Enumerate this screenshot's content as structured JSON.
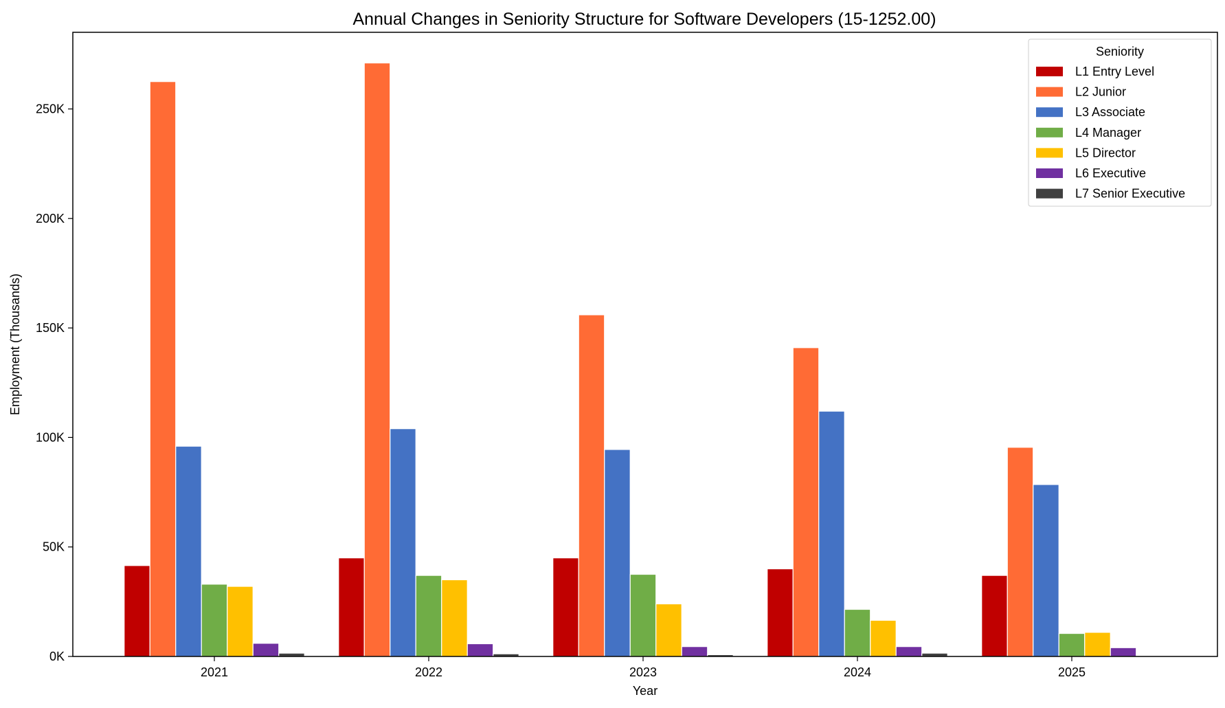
{
  "chart_data": {
    "type": "bar",
    "title": "Annual Changes in Seniority Structure for Software Developers (15-1252.00)",
    "xlabel": "Year",
    "ylabel": "Employment (Thousands)",
    "categories": [
      "2021",
      "2022",
      "2023",
      "2024",
      "2025"
    ],
    "ylim": [
      0,
      285000
    ],
    "yticks": [
      0,
      50000,
      100000,
      150000,
      200000,
      250000
    ],
    "ytick_labels": [
      "0K",
      "50K",
      "100K",
      "150K",
      "200K",
      "250K"
    ],
    "grid": false,
    "legend": {
      "title": "Seniority",
      "position": "top-right"
    },
    "series": [
      {
        "name": "L1 Entry Level",
        "color": "#C00000",
        "values": [
          41500,
          45000,
          45000,
          40000,
          37000
        ]
      },
      {
        "name": "L2 Junior",
        "color": "#FF6B35",
        "values": [
          262500,
          271000,
          156000,
          141000,
          95500
        ]
      },
      {
        "name": "L3 Associate",
        "color": "#4472C4",
        "values": [
          96000,
          104000,
          94500,
          112000,
          78500
        ]
      },
      {
        "name": "L4 Manager",
        "color": "#70AD47",
        "values": [
          33000,
          37000,
          37500,
          21500,
          10500
        ]
      },
      {
        "name": "L5 Director",
        "color": "#FFC000",
        "values": [
          32000,
          35000,
          24000,
          16500,
          11000
        ]
      },
      {
        "name": "L6 Executive",
        "color": "#7030A0",
        "values": [
          6000,
          5800,
          4500,
          4500,
          4000
        ]
      },
      {
        "name": "L7 Senior Executive",
        "color": "#404040",
        "values": [
          1500,
          1200,
          800,
          1500,
          0
        ]
      }
    ]
  }
}
